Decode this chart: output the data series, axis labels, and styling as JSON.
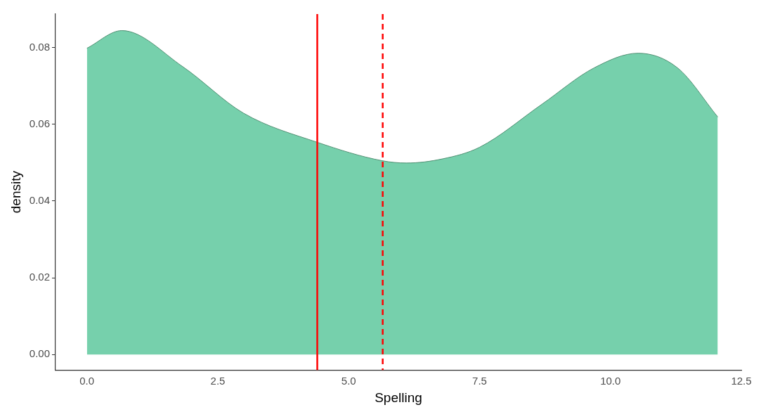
{
  "chart_data": {
    "type": "area",
    "xlabel": "Spelling",
    "ylabel": "density",
    "x": [
      0,
      0.67,
      1.83,
      2.99,
      4.4,
      5.64,
      6.1,
      6.8,
      7.5,
      8.69,
      9.69,
      10.53,
      11.28,
      12.05
    ],
    "series": [
      {
        "color": "#76d0ac",
        "values": [
          0.0798,
          0.0844,
          0.075,
          0.0629,
          0.0553,
          0.0505,
          0.0499,
          0.051,
          0.054,
          0.0652,
          0.0747,
          0.0785,
          0.0747,
          0.0619
        ]
      }
    ],
    "xlim": [
      -0.6,
      12.5
    ],
    "ylim": [
      -0.004,
      0.0887
    ],
    "xticks": [
      {
        "value": 0,
        "label": "0.0"
      },
      {
        "value": 2.5,
        "label": "2.5"
      },
      {
        "value": 5,
        "label": "5.0"
      },
      {
        "value": 7.5,
        "label": "7.5"
      },
      {
        "value": 10,
        "label": "10.0"
      },
      {
        "value": 12.5,
        "label": "12.5"
      }
    ],
    "yticks": [
      {
        "value": 0,
        "label": "0.00"
      },
      {
        "value": 0.02,
        "label": "0.02"
      },
      {
        "value": 0.04,
        "label": "0.04"
      },
      {
        "value": 0.06,
        "label": "0.06"
      },
      {
        "value": 0.08,
        "label": "0.08"
      }
    ],
    "ref_lines": [
      {
        "axis": "x",
        "value": 4.4,
        "color": "#ff0000",
        "line_style": "solid"
      },
      {
        "axis": "x",
        "value": 5.65,
        "color": "#ff0000",
        "line_style": "dashed"
      }
    ],
    "grid": false,
    "legend": false
  }
}
